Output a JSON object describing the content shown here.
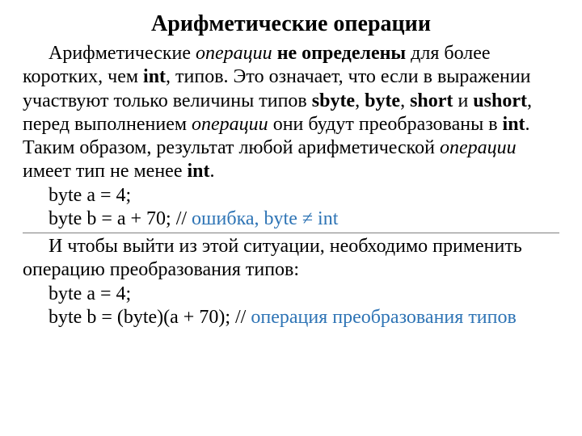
{
  "colors": {
    "text": "#000000",
    "highlight": "#2e74b5",
    "background": "#ffffff",
    "rule": "#808080"
  },
  "typography": {
    "font_family": "Times New Roman",
    "title_fontsize": 28,
    "body_fontsize": 24,
    "title_weight": "bold"
  },
  "title": "Арифметические операции",
  "p1": {
    "t1": "Арифметические ",
    "t2": "операции",
    "t3": " ",
    "t4": "не определены",
    "t5": " для более коротких, чем ",
    "t6": "int",
    "t7": ", типов. Это означает, что если в выражении участвуют только величины типов ",
    "t8": "sbyte",
    "t9": ", ",
    "t10": "byte",
    "t11": ", ",
    "t12": "short",
    "t13": " и ",
    "t14": "ushort",
    "t15": ", перед выполнением ",
    "t16": "операции",
    "t17": " они будут преобразованы в ",
    "t18": "int",
    "t19": ". Таким образом, результат любой арифметической ",
    "t20": "операции",
    "t21": " имеет тип не менее ",
    "t22": "int",
    "t23": "."
  },
  "code1": {
    "l1": "byte a = 4;",
    "l2a": "byte b = a + 70;  // ",
    "l2b": "ошибка, byte ≠ int"
  },
  "p2": {
    "t1": "И чтобы выйти из этой ситуации, необходимо применить операцию преобразования типов:"
  },
  "code2": {
    "l1": "byte a = 4;",
    "l2a": "byte b = (byte)(a + 70); // ",
    "l2b": "операция преобразования типов"
  }
}
